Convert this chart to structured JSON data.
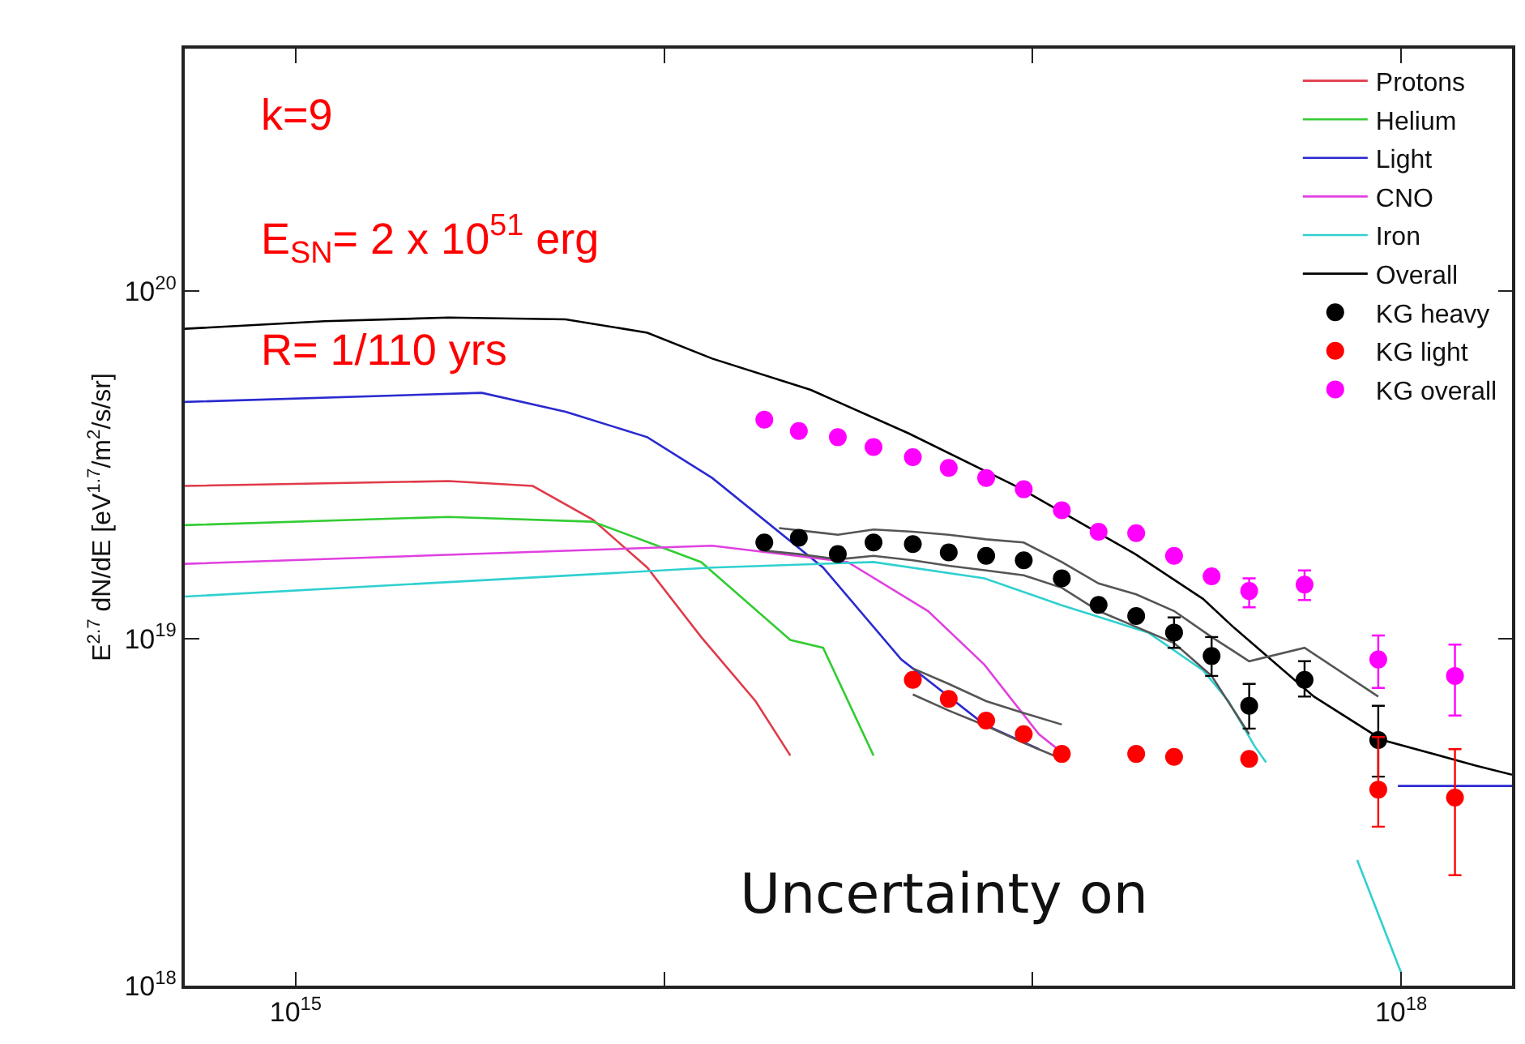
{
  "chart_data": {
    "type": "line",
    "ylabel": "E$^{2.7}$ dN/dE [eV$^{1.7}$/m$^{2}$/s/sr]",
    "log": "xy",
    "xlim": [
      500000000000000.0,
      2e+18
    ],
    "ylim": [
      1e+18,
      5e+20
    ],
    "xticks": [
      {
        "value": 1000000000000000.0,
        "label": "10$^{15}$"
      },
      {
        "value": 1e+16,
        "label": null
      },
      {
        "value": 1e+17,
        "label": null
      },
      {
        "value": 1e+18,
        "label": "10$^{18}$"
      }
    ],
    "yticks": [
      {
        "value": 1e+18,
        "label": "10$^{18}$"
      },
      {
        "value": 1e+19,
        "label": "10$^{19}$"
      },
      {
        "value": 1e+20,
        "label": "10$^{20}$"
      }
    ],
    "legend": "top right",
    "annotations": [
      "k=9",
      "E$_{SN}$= 2 x 10$^{51}$ erg",
      "R= 1/110 yrs",
      "Uncertainty on"
    ],
    "series": [
      {
        "name": "Protons",
        "color": "#e03a4a",
        "x": [
          500000000000000.0,
          2600000000000000.0,
          4400000000000000.0,
          6400000000000000.0,
          9000000000000000.0,
          1.26e+16,
          1.77e+16,
          2.2e+16
        ],
        "values": [
          2.75e+19,
          2.84e+19,
          2.75e+19,
          2.2e+19,
          1.6e+19,
          1.01e+19,
          6.6e+18,
          4.6e+18
        ]
      },
      {
        "name": "Helium",
        "color": "#33cc33",
        "x": [
          500000000000000.0,
          2600000000000000.0,
          6400000000000000.0,
          1.26e+16,
          2.2e+16,
          2.7e+16,
          3.7e+16
        ],
        "values": [
          2.12e+19,
          2.24e+19,
          2.17e+19,
          1.66e+19,
          9.9e+18,
          9.4e+18,
          4.6e+18
        ]
      },
      {
        "name": "Light",
        "color": "#2a2ad0",
        "x": [
          500000000000000.0,
          3200000000000000.0,
          5400000000000000.0,
          9000000000000000.0,
          1.35e+16,
          2.7e+16,
          4.4e+16,
          7.4e+16,
          1.04e+17,
          5e+17,
          9.8e+17,
          2e+18
        ],
        "values": [
          4.8e+19,
          5.1e+19,
          4.5e+19,
          3.8e+19,
          2.9e+19,
          1.6e+19,
          8.7e+18,
          5.65e+18,
          4.8e+18,
          null,
          3.76e+18,
          3.76e+18
        ]
      },
      {
        "name": "CNO",
        "color": "#e040e0",
        "x": [
          500000000000000.0,
          1.35e+16,
          3.15e+16,
          5.2e+16,
          7.4e+16,
          1.04e+17,
          1.23e+17
        ],
        "values": [
          1.64e+19,
          1.85e+19,
          1.66e+19,
          1.2e+19,
          8.4e+18,
          5.3e+18,
          4.6e+18
        ]
      },
      {
        "name": "Iron",
        "color": "#30d0d0",
        "x": [
          500000000000000.0,
          1.35e+16,
          3.7e+16,
          7.4e+16,
          1.19e+17,
          2.06e+17,
          2.9e+17,
          3.4e+17,
          4e+17,
          4.3e+17,
          6e+17,
          7.6e+17,
          1e+18
        ],
        "values": [
          1.32e+19,
          1.6e+19,
          1.66e+19,
          1.49e+19,
          1.25e+19,
          1.04e+19,
          8.1e+18,
          6.6e+18,
          4.9e+18,
          4.4e+18,
          null,
          2.3e+18,
          1.09e+18
        ]
      },
      {
        "name": "Overall",
        "color": "#000000",
        "x": [
          500000000000000.0,
          1200000000000000.0,
          2600000000000000.0,
          5400000000000000.0,
          9000000000000000.0,
          1.35e+16,
          2.5e+16,
          4.6e+16,
          9.3e+16,
          1.9e+17,
          2.9e+17,
          3.5e+17,
          5.8e+17,
          8.9e+17,
          1.6e+18,
          2e+18
        ],
        "values": [
          7.8e+19,
          8.2e+19,
          8.4e+19,
          8.3e+19,
          7.6e+19,
          6.4e+19,
          5.2e+19,
          3.9e+19,
          2.7e+19,
          1.75e+19,
          1.3e+19,
          1.08e+19,
          6.8e+18,
          5.1e+18,
          4.3e+18,
          4.05e+18
        ]
      },
      {
        "color": "#555555",
        "x": [
          2.05e+16,
          2.96e+16,
          3.7e+16,
          4.73e+16,
          5.92e+16,
          7.48e+16,
          9.46e+16,
          1.2e+17,
          1.51e+17,
          1.91e+17,
          2.42e+17,
          3.06e+17,
          3.87e+17,
          5.47e+17,
          8.67e+17
        ],
        "values": [
          2.08e+19,
          1.99e+19,
          2.06e+19,
          2.03e+19,
          1.99e+19,
          1.93e+19,
          1.89e+19,
          1.66e+19,
          1.44e+19,
          1.34e+19,
          1.2e+19,
          1.01e+19,
          8.6e+18,
          9.4e+18,
          6.8e+18
        ]
      },
      {
        "color": "#555555",
        "x": [
          1.87e+16,
          2.32e+16,
          2.96e+16,
          3.7e+16,
          4.73e+16,
          5.92e+16,
          7.48e+16,
          9.46e+16,
          1.2e+17,
          1.51e+17,
          1.91e+17,
          2.42e+17,
          3.06e+17,
          3.87e+17
        ],
        "values": [
          1.79e+19,
          1.75e+19,
          1.69e+19,
          1.73e+19,
          1.68e+19,
          1.62e+19,
          1.57e+19,
          1.52e+19,
          1.4e+19,
          1.2e+19,
          1.08e+19,
          9.7e+18,
          7.8e+18,
          5.3e+18
        ]
      },
      {
        "color": "#555555",
        "x": [
          4.73e+16,
          5.92e+16,
          7.48e+16,
          9.46e+16,
          1.2e+17
        ],
        "values": [
          8.2e+18,
          7.4e+18,
          6.6e+18,
          6.1e+18,
          5.65e+18
        ]
      },
      {
        "color": "#555555",
        "x": [
          4.73e+16,
          5.92e+16,
          7.48e+16,
          9.46e+16,
          1.2e+17
        ],
        "values": [
          6.9e+18,
          6.2e+18,
          5.6e+18,
          5e+18,
          4.5e+18
        ]
      },
      {
        "name": "KG heavy",
        "color": "#000000",
        "type": "scatter",
        "marker": "circle",
        "x": [
          1.87e+16,
          2.32e+16,
          2.96e+16,
          3.7e+16,
          4.73e+16,
          5.92e+16,
          7.48e+16,
          9.46e+16,
          1.2e+17,
          1.51e+17,
          1.91e+17,
          2.42e+17,
          3.06e+17,
          3.87e+17,
          5.47e+17,
          8.67e+17
        ],
        "values": [
          1.89e+19,
          1.95e+19,
          1.75e+19,
          1.89e+19,
          1.87e+19,
          1.77e+19,
          1.73e+19,
          1.68e+19,
          1.49e+19,
          1.25e+19,
          1.16e+19,
          1.04e+19,
          8.9e+18,
          6.4e+18,
          7.6e+18,
          5.1e+18
        ],
        "errors": [
          null,
          null,
          null,
          null,
          null,
          null,
          null,
          null,
          null,
          null,
          null,
          [
            9.4e+18,
            1.15e+19
          ],
          [
            7.8e+18,
            1.01e+19
          ],
          [
            5.5e+18,
            7.4e+18
          ],
          [
            6.8e+18,
            8.6e+18
          ],
          [
            4e+18,
            6.4e+18
          ]
        ]
      },
      {
        "name": "KG light",
        "color": "#ff0000",
        "type": "scatter",
        "marker": "circle",
        "x": [
          4.73e+16,
          5.92e+16,
          7.48e+16,
          9.46e+16,
          1.2e+17,
          1.91e+17,
          2.42e+17,
          3.87e+17,
          8.67e+17,
          1.4e+18
        ],
        "values": [
          7.6e+18,
          6.7e+18,
          5.8e+18,
          5.3e+18,
          4.65e+18,
          4.65e+18,
          4.56e+18,
          4.5e+18,
          3.67e+18,
          3.48e+18
        ],
        "errors": [
          null,
          null,
          null,
          null,
          null,
          null,
          null,
          null,
          [
            2.87e+18,
            5.2e+18
          ],
          [
            2.08e+18,
            4.8e+18
          ]
        ]
      },
      {
        "name": "KG overall",
        "color": "#ff00ff",
        "type": "scatter",
        "marker": "circle",
        "x": [
          1.87e+16,
          2.32e+16,
          2.96e+16,
          3.7e+16,
          4.73e+16,
          5.92e+16,
          7.48e+16,
          9.46e+16,
          1.2e+17,
          1.51e+17,
          1.91e+17,
          2.42e+17,
          3.06e+17,
          3.87e+17,
          5.47e+17,
          8.67e+17,
          1.4e+18
        ],
        "values": [
          4.27e+19,
          3.96e+19,
          3.8e+19,
          3.56e+19,
          3.33e+19,
          3.1e+19,
          2.9e+19,
          2.69e+19,
          2.34e+19,
          2.03e+19,
          2.01e+19,
          1.73e+19,
          1.51e+19,
          1.37e+19,
          1.43e+19,
          8.7e+18,
          7.8e+18
        ],
        "errors": [
          null,
          null,
          null,
          null,
          null,
          null,
          null,
          null,
          null,
          null,
          null,
          null,
          null,
          [
            1.23e+19,
            1.49e+19
          ],
          [
            1.29e+19,
            1.57e+19
          ],
          [
            7.2e+18,
            1.02e+19
          ],
          [
            6e+18,
            9.6e+18
          ]
        ]
      }
    ]
  }
}
